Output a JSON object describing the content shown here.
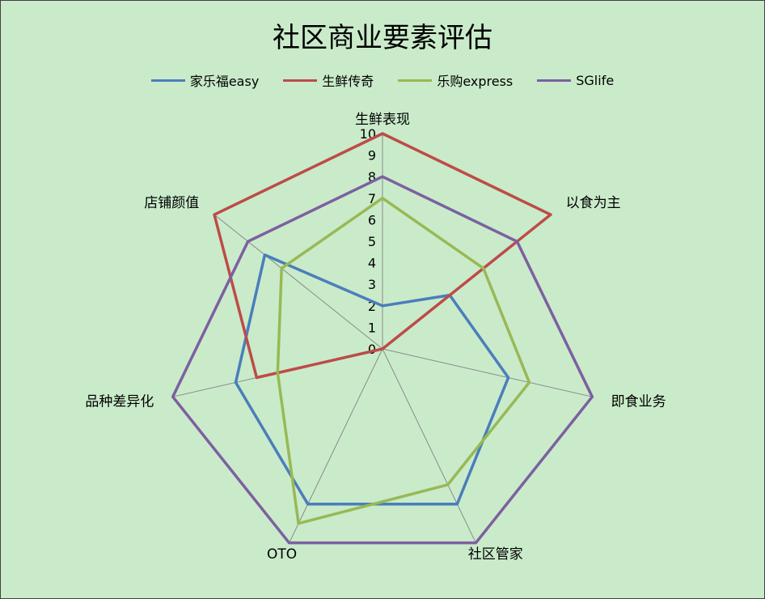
{
  "chart_data": {
    "type": "radar",
    "title": "社区商业要素评估",
    "categories": [
      "生鲜表现",
      "以食为主",
      "即食业务",
      "社区管家",
      "OTO",
      "品种差异化",
      "店铺颜值"
    ],
    "rlim": [
      0,
      10
    ],
    "ticks": [
      "0",
      "1",
      "2",
      "3",
      "4",
      "5",
      "6",
      "7",
      "8",
      "9",
      "10"
    ],
    "legend_position": "top",
    "series": [
      {
        "name": "家乐福easy",
        "color": "#4a7ebb",
        "values": [
          2,
          4,
          6,
          8,
          8,
          7,
          7
        ]
      },
      {
        "name": "生鲜传奇",
        "color": "#be4b48",
        "values": [
          10,
          10,
          0,
          0,
          0,
          6,
          10
        ]
      },
      {
        "name": "乐购express",
        "color": "#98b954",
        "values": [
          7,
          6,
          7,
          7,
          9,
          5,
          6
        ]
      },
      {
        "name": "SGlife",
        "color": "#7d60a0",
        "values": [
          8,
          8,
          10,
          10,
          10,
          10,
          8
        ]
      }
    ]
  }
}
